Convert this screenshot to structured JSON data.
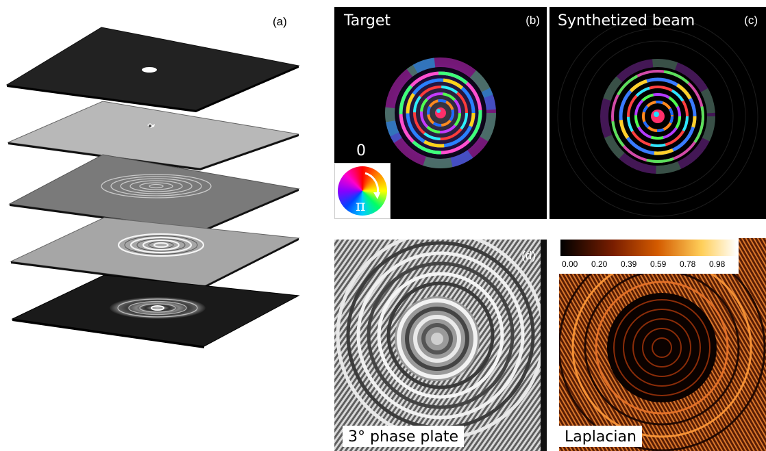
{
  "figure": {
    "panels": {
      "a": {
        "label": "(a)"
      },
      "b": {
        "label": "(b)",
        "title": "Target",
        "phase_zero": "0",
        "phase_pi": "π"
      },
      "c": {
        "label": "(c)",
        "title": "Synthetized beam"
      },
      "d": {
        "label": "(d)",
        "caption": "3° phase plate"
      },
      "e": {
        "caption": "Laplacian",
        "colorbar_ticks": [
          "0.00",
          "0.20",
          "0.39",
          "0.59",
          "0.78",
          "0.98"
        ]
      }
    }
  }
}
